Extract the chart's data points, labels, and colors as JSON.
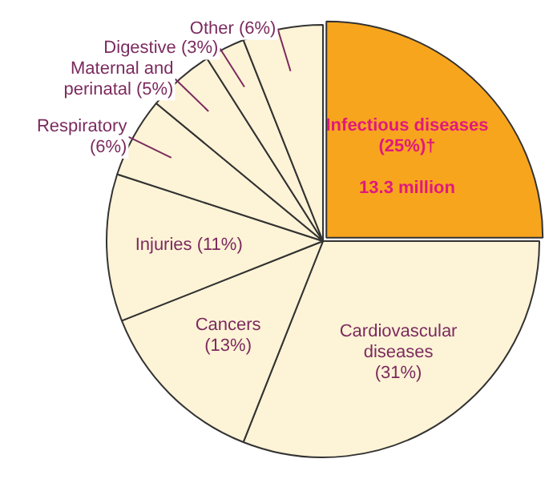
{
  "chart_data": {
    "type": "pie",
    "categories": [
      "Infectious diseases",
      "Cardiovascular diseases",
      "Cancers",
      "Injuries",
      "Respiratory",
      "Maternal and perinatal",
      "Digestive",
      "Other"
    ],
    "values": [
      25,
      31,
      13,
      11,
      6,
      5,
      3,
      6
    ],
    "value_labels": [
      "(25%)†",
      "(31%)",
      "(13%)",
      "(11%)",
      "(6%)",
      "(5%)",
      "(3%)",
      "(6%)"
    ],
    "colors": [
      "#f8a51e",
      "#fdf3d6",
      "#fdf3d6",
      "#fdf3d6",
      "#fdf3d6",
      "#fdf3d6",
      "#fdf3d6",
      "#fdf3d6"
    ],
    "annotations": [
      {
        "text": "13.3 million",
        "x": "Infectious diseases"
      }
    ],
    "legend": false
  }
}
